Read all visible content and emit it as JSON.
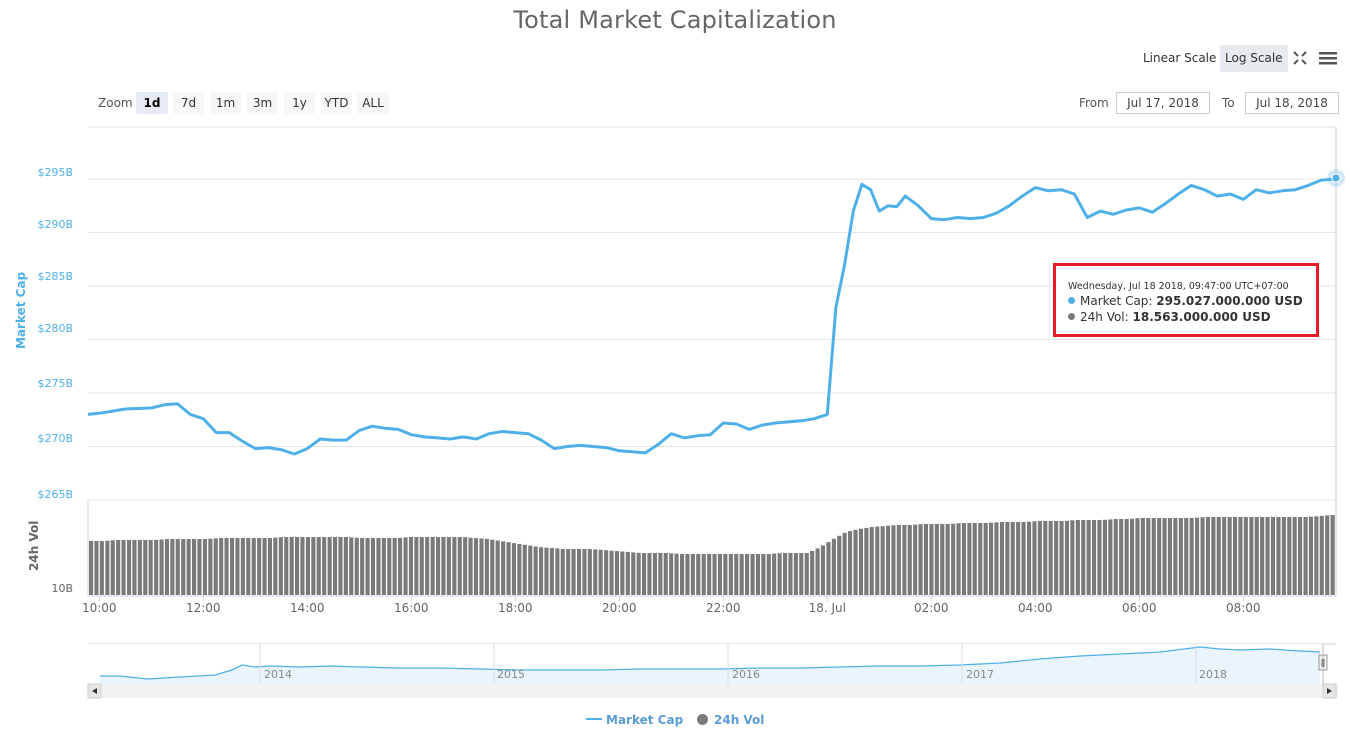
{
  "header": {
    "title": "Total Market Capitalization",
    "scale_buttons": [
      {
        "label": "Linear Scale",
        "active": false
      },
      {
        "label": "Log Scale",
        "active": true
      }
    ],
    "icons": [
      "fullscreen-icon",
      "menu-icon"
    ]
  },
  "range_selector": {
    "zoom_label": "Zoom",
    "buttons": [
      {
        "label": "1d",
        "active": true
      },
      {
        "label": "7d",
        "active": false
      },
      {
        "label": "1m",
        "active": false
      },
      {
        "label": "3m",
        "active": false
      },
      {
        "label": "1y",
        "active": false
      },
      {
        "label": "YTD",
        "active": false
      },
      {
        "label": "ALL",
        "active": false
      }
    ],
    "from_label": "From",
    "from_value": "Jul 17, 2018",
    "to_label": "To",
    "to_value": "Jul 18, 2018"
  },
  "tooltip": {
    "date": "Wednesday, Jul 18 2018, 09:47:00 UTC+07:00",
    "market_cap_label": "Market Cap: ",
    "market_cap_value": "295.027.000.000 USD",
    "vol_label": "24h Vol: ",
    "vol_value": "18.563.000.000 USD"
  },
  "navigator": {
    "years": [
      "2014",
      "2015",
      "2016",
      "2017",
      "2018"
    ]
  },
  "legend": {
    "market_cap": "Market Cap",
    "vol": "24h Vol"
  },
  "colors": {
    "market_cap": "#4fb0e8",
    "volume": "#7a7a7a",
    "tooltip_border": "#e41e26",
    "grid": "#e6e6e6"
  },
  "chart_data": {
    "type": "line",
    "title": "Total Market Capitalization",
    "xlabel": "",
    "ylabel": "Market Cap",
    "y2label": "24h Vol",
    "y_ticks": [
      "$295B",
      "$290B",
      "$285B",
      "$280B",
      "$275B",
      "$270B",
      "$265B"
    ],
    "y2_ticks": [
      "10B"
    ],
    "x_ticks": [
      "10:00",
      "12:00",
      "14:00",
      "16:00",
      "18:00",
      "20:00",
      "22:00",
      "18. Jul",
      "02:00",
      "04:00",
      "06:00",
      "08:00"
    ],
    "ylim": [
      265,
      297
    ],
    "grid": true,
    "legend_position": "bottom",
    "series": [
      {
        "name": "Market Cap",
        "unit": "USD billions",
        "x": [
          "09:47",
          "10:00",
          "10:30",
          "11:00",
          "11:15",
          "11:30",
          "11:45",
          "12:00",
          "12:15",
          "12:30",
          "12:45",
          "13:00",
          "13:15",
          "13:30",
          "13:45",
          "14:00",
          "14:15",
          "14:30",
          "14:45",
          "15:00",
          "15:15",
          "15:30",
          "15:45",
          "16:00",
          "16:15",
          "16:30",
          "16:45",
          "17:00",
          "17:15",
          "17:30",
          "17:45",
          "18:00",
          "18:15",
          "18:30",
          "18:45",
          "19:00",
          "19:15",
          "19:30",
          "19:45",
          "20:00",
          "20:15",
          "20:30",
          "20:45",
          "21:00",
          "21:15",
          "21:30",
          "21:45",
          "22:00",
          "22:15",
          "22:30",
          "22:45",
          "23:00",
          "23:15",
          "23:30",
          "23:45",
          "00:00",
          "00:10",
          "00:20",
          "00:30",
          "00:40",
          "00:50",
          "01:00",
          "01:10",
          "01:20",
          "01:30",
          "01:45",
          "02:00",
          "02:15",
          "02:30",
          "02:45",
          "03:00",
          "03:15",
          "03:30",
          "03:45",
          "04:00",
          "04:15",
          "04:30",
          "04:45",
          "05:00",
          "05:15",
          "05:30",
          "05:45",
          "06:00",
          "06:15",
          "06:30",
          "06:45",
          "07:00",
          "07:15",
          "07:30",
          "07:45",
          "08:00",
          "08:15",
          "08:30",
          "08:45",
          "09:00",
          "09:15",
          "09:30",
          "09:47"
        ],
        "values": [
          273.0,
          273.1,
          273.5,
          273.6,
          273.9,
          274.0,
          273.0,
          272.6,
          271.3,
          271.3,
          270.5,
          269.8,
          269.9,
          269.7,
          269.3,
          269.8,
          270.7,
          270.6,
          270.6,
          271.5,
          271.9,
          271.7,
          271.6,
          271.1,
          270.9,
          270.8,
          270.7,
          270.9,
          270.7,
          271.2,
          271.4,
          271.3,
          271.2,
          270.6,
          269.8,
          270.0,
          270.1,
          270.0,
          269.9,
          269.6,
          269.5,
          269.4,
          270.2,
          271.2,
          270.8,
          271.0,
          271.1,
          272.2,
          272.1,
          271.6,
          272.0,
          272.2,
          272.3,
          272.4,
          272.6,
          273.0,
          283.0,
          287.0,
          292.0,
          294.5,
          294.0,
          292.0,
          292.5,
          292.4,
          293.4,
          292.5,
          291.3,
          291.2,
          291.4,
          291.3,
          291.4,
          291.8,
          292.5,
          293.4,
          294.2,
          293.9,
          294.0,
          293.6,
          291.4,
          292.0,
          291.7,
          292.1,
          292.3,
          291.9,
          292.7,
          293.6,
          294.4,
          294.0,
          293.4,
          293.6,
          293.1,
          294.0,
          293.7,
          293.9,
          294.0,
          294.4,
          294.9,
          295.0
        ]
      },
      {
        "name": "24h Vol",
        "unit": "relative bar height px",
        "values_desc": "volume bars roughly flat ~54px, dipping to ~41px around 20:00-23:45, then rising to ~80px after 00:30 and reaching ~82px at 09:47",
        "values": [
          54,
          54,
          55,
          55,
          55,
          55,
          56,
          56,
          56,
          56,
          57,
          57,
          57,
          57,
          57,
          58,
          58,
          58,
          58,
          58,
          58,
          57,
          57,
          57,
          57,
          58,
          58,
          58,
          58,
          58,
          57,
          56,
          54,
          52,
          50,
          48,
          47,
          46,
          46,
          46,
          45,
          44,
          43,
          42,
          42,
          42,
          41,
          41,
          41,
          41,
          41,
          41,
          41,
          41,
          42,
          42,
          42,
          48,
          56,
          63,
          66,
          68,
          69,
          70,
          70,
          71,
          71,
          71,
          72,
          72,
          72,
          73,
          73,
          73,
          74,
          74,
          74,
          75,
          75,
          75,
          76,
          76,
          77,
          77,
          77,
          77,
          77,
          78,
          78,
          78,
          78,
          78,
          78,
          78,
          78,
          78,
          79,
          80
        ]
      }
    ],
    "highlighted_point": {
      "x": "Jul 18 2018 09:47",
      "market_cap": 295.027,
      "volume": 18.563
    }
  }
}
